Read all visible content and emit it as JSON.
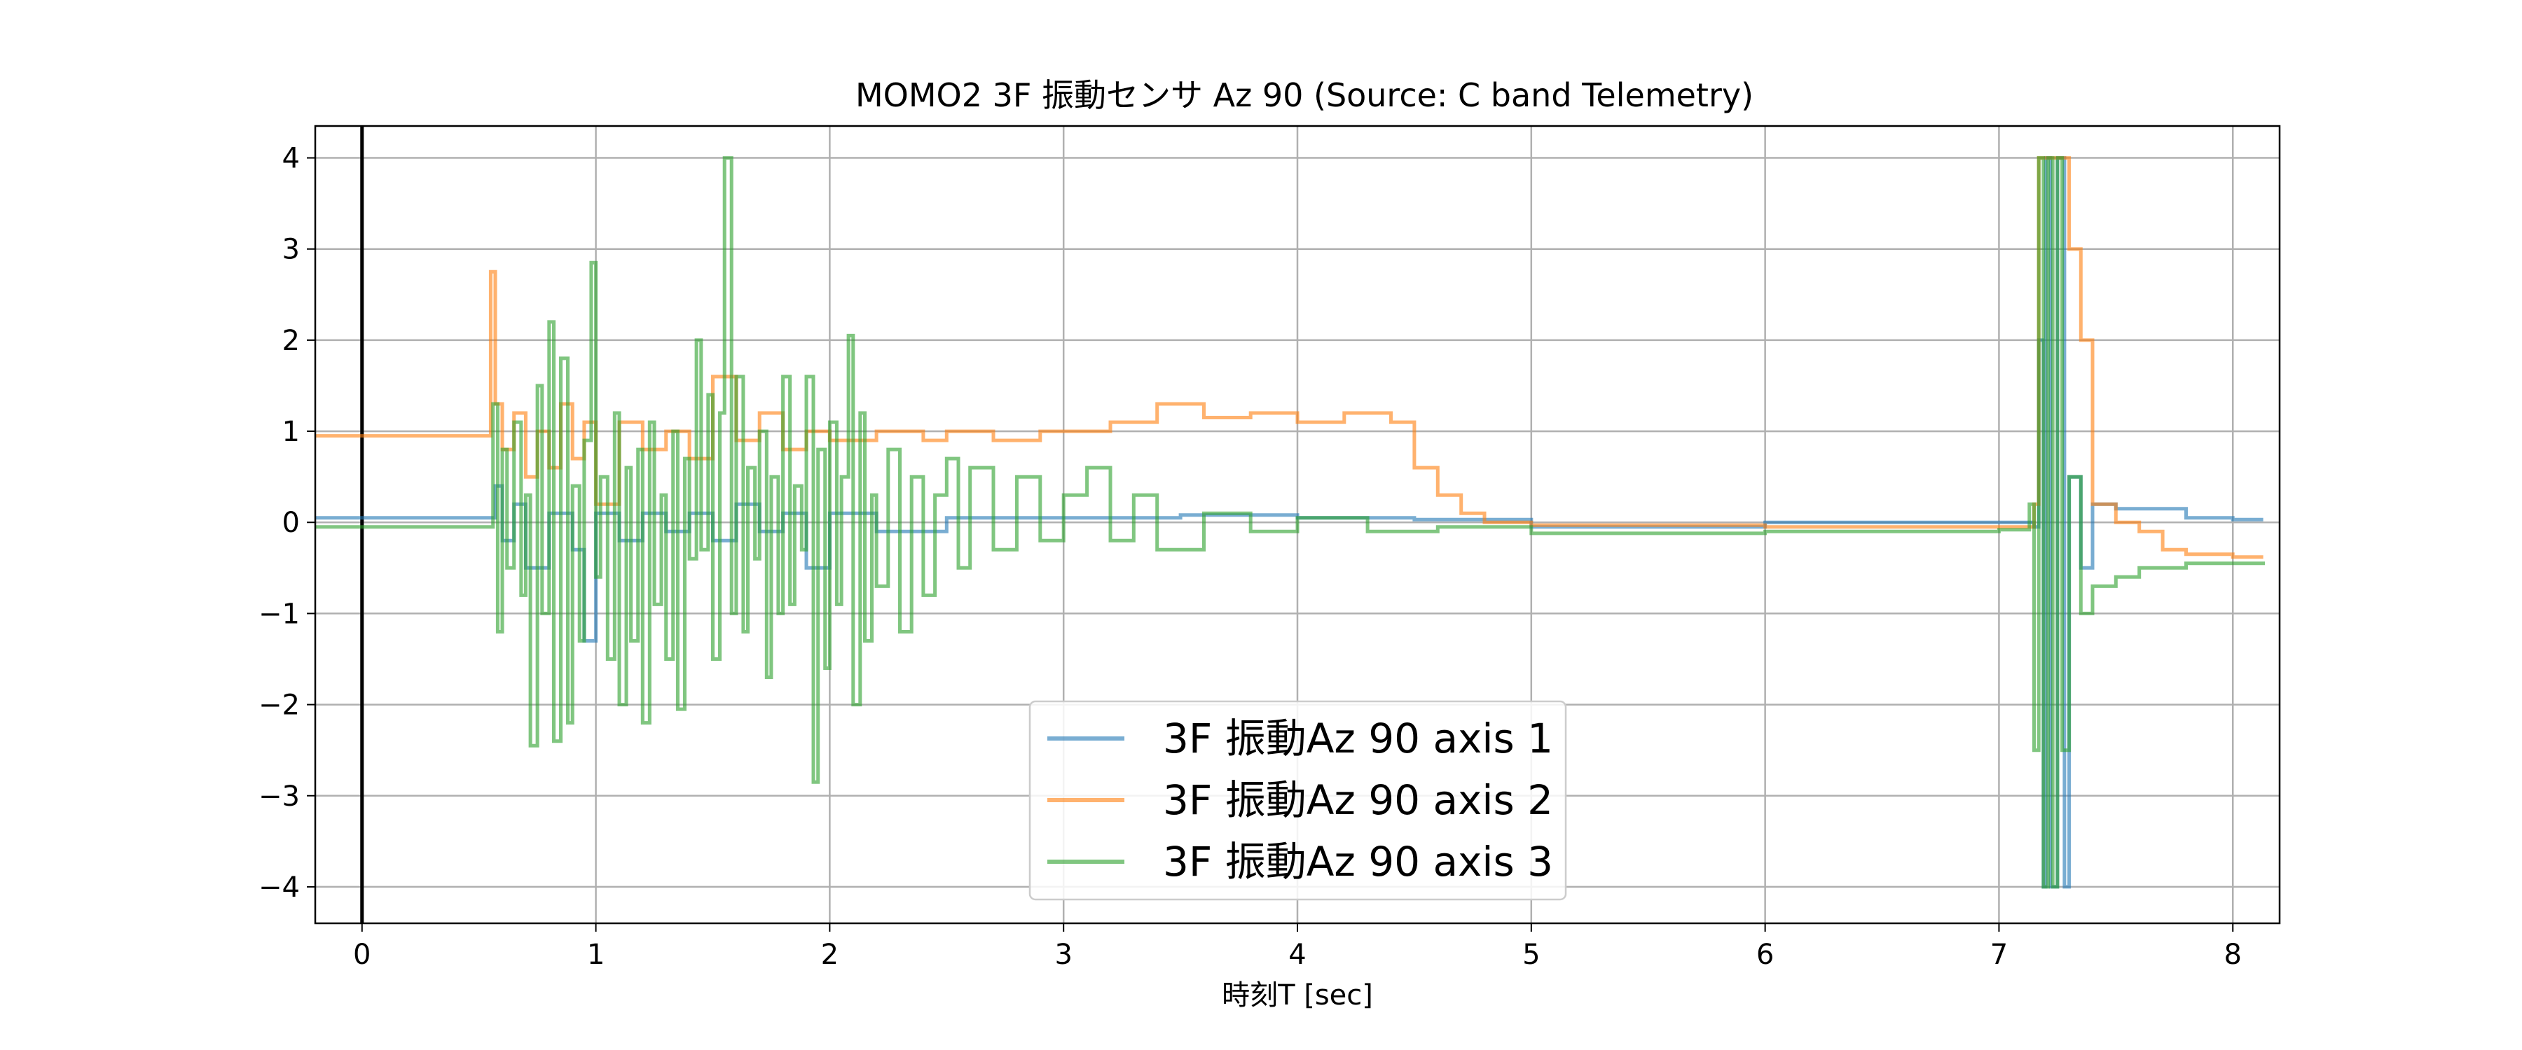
{
  "chart_data": {
    "type": "line",
    "title": "MOMO2 3F 振動センサ Az 90 (Source: C band Telemetry)",
    "xlabel": "時刻T [sec]",
    "ylabel": "",
    "xlim": [
      -0.2,
      8.2
    ],
    "ylim": [
      -4.4,
      4.35
    ],
    "x_ticks": [
      0,
      1,
      2,
      3,
      4,
      5,
      6,
      7,
      8
    ],
    "x_tick_labels": [
      "0",
      "1",
      "2",
      "3",
      "4",
      "5",
      "6",
      "7",
      "8"
    ],
    "y_ticks": [
      4,
      3,
      2,
      1,
      0,
      -1,
      -2,
      -3,
      -4
    ],
    "y_tick_labels": [
      "4",
      "3",
      "2",
      "1",
      "0",
      "−1",
      "−2",
      "−3",
      "−4"
    ],
    "grid": true,
    "legend_position": "lower-center",
    "reference_line_x": 0,
    "series": [
      {
        "name": "3F 振動Az 90 axis 1",
        "color": "#1f77b4",
        "x": [
          -0.2,
          0.55,
          0.57,
          0.6,
          0.65,
          0.7,
          0.8,
          0.9,
          0.95,
          1.0,
          1.1,
          1.2,
          1.3,
          1.4,
          1.5,
          1.6,
          1.7,
          1.8,
          1.9,
          2.0,
          2.2,
          2.5,
          3.0,
          3.5,
          4.0,
          4.5,
          5.0,
          6.0,
          7.0,
          7.15,
          7.17,
          7.19,
          7.2,
          7.22,
          7.25,
          7.28,
          7.3,
          7.35,
          7.4,
          7.5,
          7.6,
          7.8,
          8.0,
          8.13
        ],
        "y": [
          0.05,
          0.05,
          0.4,
          -0.2,
          0.2,
          -0.5,
          0.1,
          -0.3,
          -1.3,
          0.1,
          -0.2,
          0.1,
          -0.1,
          0.1,
          -0.2,
          0.2,
          -0.1,
          0.1,
          -0.5,
          0.1,
          -0.1,
          0.05,
          0.05,
          0.08,
          0.05,
          0.03,
          -0.05,
          0.0,
          0.0,
          -0.05,
          2.0,
          -4.0,
          4.0,
          -4.0,
          4.0,
          -4.0,
          0.5,
          -0.5,
          0.2,
          0.15,
          0.15,
          0.05,
          0.03,
          0.03
        ]
      },
      {
        "name": "3F 振動Az 90 axis 2",
        "color": "#ff7f0e",
        "x": [
          -0.2,
          0.54,
          0.55,
          0.57,
          0.6,
          0.65,
          0.7,
          0.75,
          0.8,
          0.85,
          0.9,
          0.95,
          1.0,
          1.1,
          1.2,
          1.3,
          1.4,
          1.5,
          1.6,
          1.7,
          1.8,
          1.9,
          2.0,
          2.2,
          2.4,
          2.5,
          2.7,
          2.9,
          3.0,
          3.2,
          3.4,
          3.6,
          3.8,
          4.0,
          4.2,
          4.4,
          4.5,
          4.6,
          4.7,
          4.8,
          5.0,
          6.0,
          7.0,
          7.15,
          7.17,
          7.2,
          7.3,
          7.35,
          7.4,
          7.5,
          7.6,
          7.7,
          7.8,
          8.0,
          8.13
        ],
        "y": [
          0.95,
          0.95,
          2.75,
          1.3,
          0.8,
          1.2,
          0.5,
          1.0,
          0.6,
          1.3,
          0.7,
          1.1,
          0.2,
          1.1,
          0.8,
          1.0,
          0.7,
          1.6,
          0.9,
          1.2,
          0.8,
          1.0,
          0.9,
          1.0,
          0.9,
          1.0,
          0.9,
          1.0,
          1.0,
          1.1,
          1.3,
          1.15,
          1.2,
          1.1,
          1.2,
          1.1,
          0.6,
          0.3,
          0.1,
          0.0,
          -0.03,
          -0.05,
          -0.05,
          0.2,
          4.0,
          4.0,
          3.0,
          2.0,
          0.2,
          0.0,
          -0.1,
          -0.3,
          -0.35,
          -0.38,
          -0.38
        ]
      },
      {
        "name": "3F 振動Az 90 axis 3",
        "color": "#2ca02c",
        "x": [
          -0.2,
          0.54,
          0.56,
          0.58,
          0.6,
          0.62,
          0.65,
          0.68,
          0.7,
          0.72,
          0.75,
          0.77,
          0.8,
          0.82,
          0.85,
          0.88,
          0.9,
          0.93,
          0.95,
          0.98,
          1.0,
          1.02,
          1.05,
          1.08,
          1.1,
          1.13,
          1.15,
          1.18,
          1.2,
          1.23,
          1.25,
          1.28,
          1.3,
          1.33,
          1.35,
          1.38,
          1.4,
          1.43,
          1.45,
          1.48,
          1.5,
          1.53,
          1.55,
          1.58,
          1.6,
          1.63,
          1.65,
          1.68,
          1.7,
          1.73,
          1.75,
          1.78,
          1.8,
          1.83,
          1.85,
          1.88,
          1.9,
          1.93,
          1.95,
          1.98,
          2.0,
          2.03,
          2.05,
          2.08,
          2.1,
          2.13,
          2.15,
          2.18,
          2.2,
          2.25,
          2.3,
          2.35,
          2.4,
          2.45,
          2.5,
          2.55,
          2.6,
          2.7,
          2.8,
          2.9,
          3.0,
          3.1,
          3.2,
          3.3,
          3.4,
          3.6,
          3.8,
          4.0,
          4.3,
          4.6,
          5.0,
          6.0,
          7.0,
          7.13,
          7.15,
          7.17,
          7.19,
          7.21,
          7.23,
          7.25,
          7.27,
          7.3,
          7.35,
          7.4,
          7.5,
          7.6,
          7.8,
          8.0,
          8.13
        ],
        "y": [
          -0.05,
          -0.05,
          1.3,
          -1.2,
          0.8,
          -0.5,
          1.1,
          -0.8,
          0.3,
          -2.45,
          1.5,
          -1.0,
          2.2,
          -2.4,
          1.8,
          -2.2,
          0.4,
          -1.3,
          0.9,
          2.85,
          -0.6,
          0.5,
          -1.5,
          1.2,
          -2.0,
          0.6,
          -1.3,
          0.8,
          -2.2,
          1.1,
          -0.9,
          0.3,
          -1.5,
          1.0,
          -2.05,
          0.7,
          -0.4,
          2.0,
          -0.3,
          1.4,
          -1.5,
          1.2,
          4.0,
          -1.0,
          1.6,
          -1.2,
          0.6,
          -0.4,
          1.0,
          -1.7,
          0.5,
          -1.0,
          1.6,
          -0.9,
          0.4,
          -0.3,
          1.6,
          -2.85,
          0.8,
          -1.6,
          1.1,
          -0.9,
          0.5,
          2.05,
          -2.0,
          1.2,
          -1.3,
          0.3,
          -0.7,
          0.8,
          -1.2,
          0.5,
          -0.8,
          0.3,
          0.7,
          -0.5,
          0.6,
          -0.3,
          0.5,
          -0.2,
          0.3,
          0.6,
          -0.2,
          0.3,
          -0.3,
          0.1,
          -0.1,
          0.05,
          -0.1,
          -0.05,
          -0.12,
          -0.1,
          -0.08,
          0.2,
          -2.5,
          4.0,
          -4.0,
          4.0,
          -4.0,
          4.0,
          -2.5,
          0.5,
          -1.0,
          -0.7,
          -0.6,
          -0.5,
          -0.45,
          -0.45,
          -0.43
        ]
      }
    ]
  }
}
